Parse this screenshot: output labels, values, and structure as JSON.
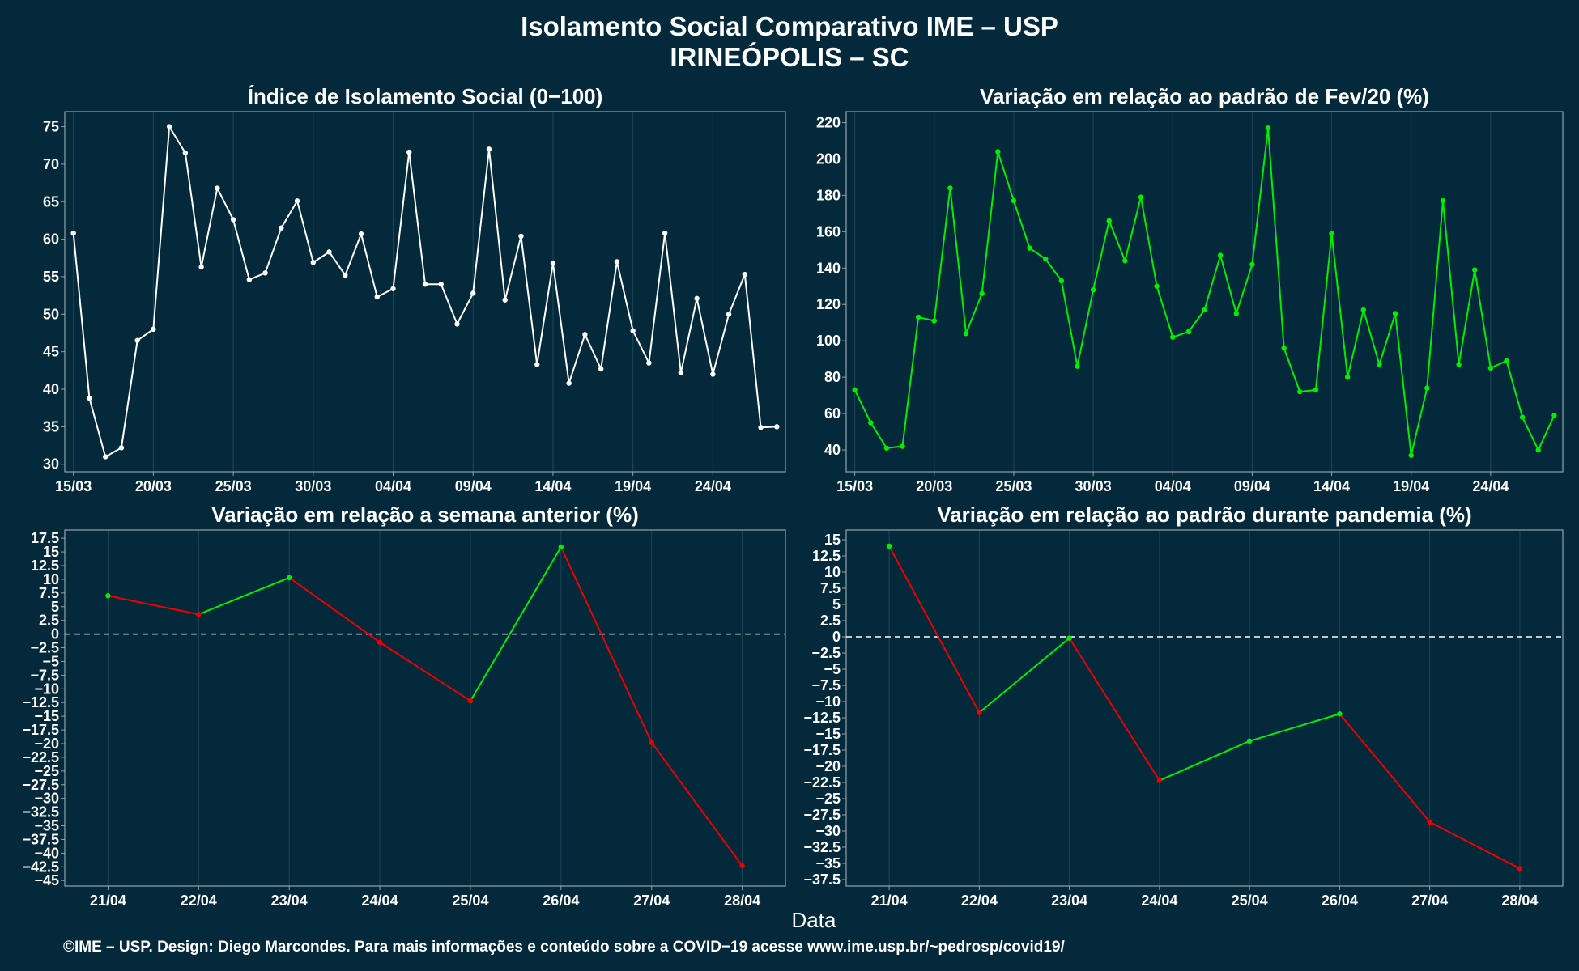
{
  "title_line1": "Isolamento Social Comparativo IME – USP",
  "title_line2": "IRINEÓPOLIS – SC",
  "x_axis_caption": "Data",
  "footer": "©IME – USP. Design: Diego Marcondes. Para mais informações e conteúdo sobre a COVID−19 acesse www.ime.usp.br/~pedrosp/covid19/",
  "colors": {
    "background": "#04293a",
    "white_series": "#ffffff",
    "positive": "#00ee00",
    "negative": "#ee0000",
    "grid": "#1d4757",
    "frame": "#8fa2aa"
  },
  "chart_data": [
    {
      "type": "line",
      "title": "Índice de Isolamento Social (0−100)",
      "color_mode": "white",
      "xticks": [
        "15/03",
        "20/03",
        "25/03",
        "30/03",
        "04/04",
        "09/04",
        "14/04",
        "19/04",
        "24/04"
      ],
      "xtick_index": [
        0,
        5,
        10,
        15,
        20,
        25,
        30,
        35,
        40
      ],
      "ylim": [
        29,
        77
      ],
      "yticks": [
        30,
        35,
        40,
        45,
        50,
        55,
        60,
        65,
        70,
        75
      ],
      "values": [
        60.8,
        38.8,
        31.0,
        32.2,
        46.5,
        48.0,
        75.0,
        71.5,
        56.3,
        66.8,
        62.6,
        54.6,
        55.5,
        61.5,
        65.1,
        56.9,
        58.3,
        55.2,
        60.7,
        52.3,
        53.4,
        71.6,
        54.0,
        54.0,
        48.7,
        52.8,
        72.0,
        51.9,
        60.4,
        43.3,
        56.8,
        40.8,
        47.3,
        42.7,
        57.0,
        47.8,
        43.5,
        60.8,
        42.2,
        52.1,
        42.0,
        50.0,
        55.3,
        34.9,
        35.0
      ]
    },
    {
      "type": "line",
      "title": "Variação em relação ao padrão de Fev/20 (%)",
      "color_mode": "green",
      "xticks": [
        "15/03",
        "20/03",
        "25/03",
        "30/03",
        "04/04",
        "09/04",
        "14/04",
        "19/04",
        "24/04"
      ],
      "xtick_index": [
        0,
        5,
        10,
        15,
        20,
        25,
        30,
        35,
        40
      ],
      "ylim": [
        28,
        226
      ],
      "yticks": [
        40,
        60,
        80,
        100,
        120,
        140,
        160,
        180,
        200,
        220
      ],
      "values": [
        73,
        55,
        41,
        42,
        113,
        111,
        184,
        104,
        126,
        204,
        177,
        151,
        145,
        133,
        86,
        128,
        166,
        144,
        179,
        130,
        102,
        105,
        117,
        147,
        115,
        142,
        217,
        96,
        72,
        73,
        159,
        80,
        117,
        87,
        115,
        37,
        74,
        177,
        87,
        139,
        85,
        89,
        58,
        40,
        59
      ]
    },
    {
      "type": "line",
      "title": "Variação em relação a semana anterior (%)",
      "color_mode": "sign",
      "reference_line": 0,
      "categories": [
        "21/04",
        "22/04",
        "23/04",
        "24/04",
        "25/04",
        "26/04",
        "27/04",
        "28/04"
      ],
      "ylim": [
        -46,
        19
      ],
      "yticks": [
        -45,
        -42.5,
        -40,
        -37.5,
        -35,
        -32.5,
        -30,
        -27.5,
        -25,
        -22.5,
        -20,
        -17.5,
        -15,
        -12.5,
        -10,
        -7.5,
        -5,
        -2.5,
        0,
        2.5,
        5,
        7.5,
        10,
        12.5,
        15,
        17.5
      ],
      "values": [
        7.0,
        3.6,
        10.3,
        -1.5,
        -12.2,
        15.9,
        -19.8,
        -42.3
      ]
    },
    {
      "type": "line",
      "title": "Variação em relação ao padrão durante pandemia (%)",
      "color_mode": "sign",
      "reference_line": 0,
      "categories": [
        "21/04",
        "22/04",
        "23/04",
        "24/04",
        "25/04",
        "26/04",
        "27/04",
        "28/04"
      ],
      "ylim": [
        -38.5,
        16.5
      ],
      "yticks": [
        -37.5,
        -35,
        -32.5,
        -30,
        -27.5,
        -25,
        -22.5,
        -20,
        -17.5,
        -15,
        -12.5,
        -10,
        -7.5,
        -5,
        -2.5,
        0,
        2.5,
        5,
        7.5,
        10,
        12.5,
        15
      ],
      "values": [
        14.0,
        -11.7,
        -0.2,
        -22.2,
        -16.1,
        -11.9,
        -28.6,
        -35.8
      ]
    }
  ]
}
